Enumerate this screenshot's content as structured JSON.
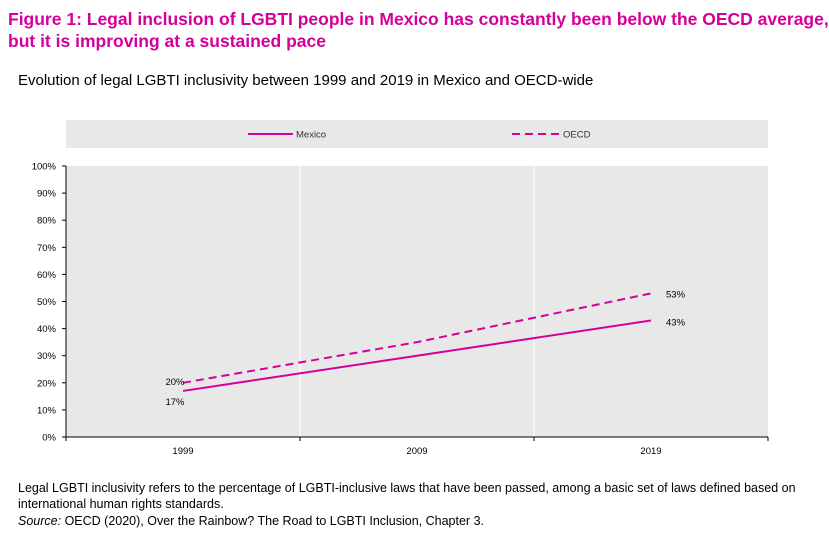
{
  "figure": {
    "title_line1": "Figure 1: Legal inclusion of LGBTI people in Mexico has constantly been below the OECD average,",
    "title_line2": "but it is improving at a sustained pace",
    "subtitle": "Evolution of legal LGBTI inclusivity between 1999 and 2019 in Mexico and OECD-wide",
    "note": "Legal LGBTI inclusivity refers to the percentage of LGBTI-inclusive laws that have been passed, among a basic set of laws defined based on international human rights standards.",
    "source_label": "Source:",
    "source_text": " OECD (2020), Over the Rainbow? The Road to LGBTI Inclusion, Chapter 3."
  },
  "colors": {
    "accent": "#d4009a",
    "plot_bg": "#e8e8e8",
    "grid": "#ffffff"
  },
  "chart_data": {
    "type": "line",
    "categories": [
      "1999",
      "2009",
      "2019"
    ],
    "x": [
      1999,
      2009,
      2019
    ],
    "y_ticks": [
      "0%",
      "10%",
      "20%",
      "30%",
      "40%",
      "50%",
      "60%",
      "70%",
      "80%",
      "90%",
      "100%"
    ],
    "ylim": [
      0,
      100
    ],
    "grid": true,
    "legend_position": "top",
    "series": [
      {
        "name": "Mexico",
        "style": "solid",
        "color": "#d4009a",
        "values": [
          17,
          30,
          43
        ],
        "labels": {
          "0": "17%",
          "2": "43%"
        }
      },
      {
        "name": "OECD",
        "style": "dashed",
        "color": "#d4009a",
        "values": [
          20,
          35,
          53
        ],
        "labels": {
          "0": "20%",
          "2": "53%"
        }
      }
    ]
  }
}
